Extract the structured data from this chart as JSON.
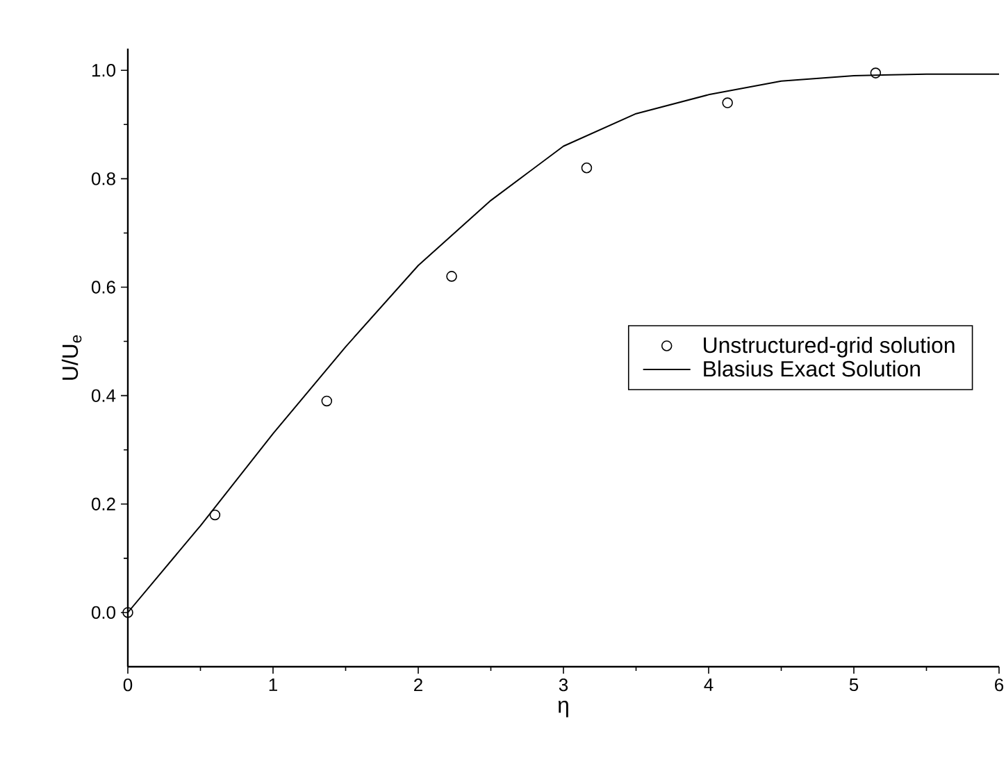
{
  "chart_data": {
    "type": "scatter",
    "xlabel": "η",
    "ylabel": "U/U$_{e}$",
    "xlim": [
      0,
      6
    ],
    "ylim": [
      -0.1,
      1.04
    ],
    "xticks": [
      0,
      1,
      2,
      3,
      4,
      5,
      6
    ],
    "yticks": [
      {
        "value": 0,
        "label": "0.0"
      },
      {
        "value": 0.2,
        "label": "0.2"
      },
      {
        "value": 0.4,
        "label": "0.4"
      },
      {
        "value": 0.6,
        "label": "0.6"
      },
      {
        "value": 0.8,
        "label": "0.8"
      },
      {
        "value": 1.0,
        "label": "1.0"
      }
    ],
    "legend": "right",
    "grid": false,
    "series": [
      {
        "name": "Unstructured-grid solution",
        "type": "scatter",
        "marker": "circle",
        "color": "#000000",
        "x": [
          0,
          0.6,
          1.37,
          2.23,
          3.16,
          4.13,
          5.15
        ],
        "values": [
          0,
          0.18,
          0.39,
          0.62,
          0.82,
          0.94,
          0.995
        ]
      },
      {
        "name": "Blasius Exact Solution",
        "type": "line",
        "line_style": "solid",
        "color": "#000000",
        "x": [
          0,
          0.5,
          1,
          1.5,
          2,
          2.5,
          3,
          3.5,
          4,
          4.5,
          5,
          5.5,
          6
        ],
        "values": [
          0,
          0.16,
          0.33,
          0.49,
          0.64,
          0.76,
          0.86,
          0.92,
          0.955,
          0.98,
          0.99,
          0.993,
          0.993
        ]
      }
    ]
  }
}
